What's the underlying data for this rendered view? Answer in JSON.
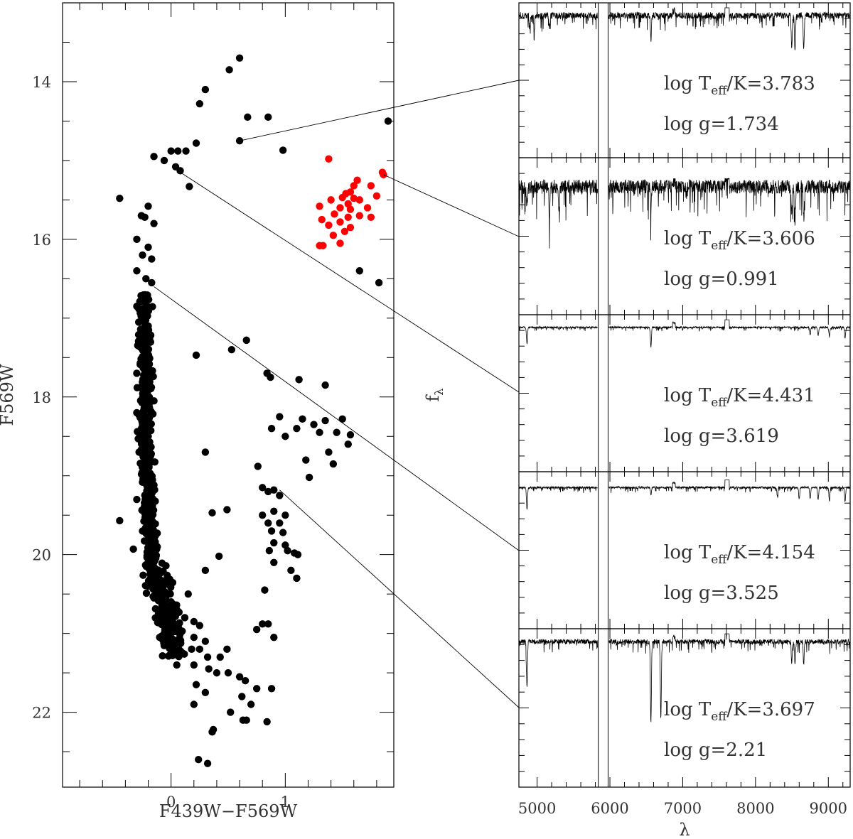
{
  "chart_data": [
    {
      "type": "scatter",
      "title": "",
      "xlabel": "F439W−F569W",
      "ylabel": "F569W",
      "xlim": [
        -0.95,
        1.95
      ],
      "ylim": [
        22.95,
        13.0
      ],
      "y_inverted": true,
      "xticks": [
        0,
        1
      ],
      "yticks": [
        14,
        16,
        18,
        20,
        22
      ],
      "colors": {
        "main": "#000000",
        "highlight": "#ff0000"
      },
      "series": [
        {
          "color": "#000000",
          "points": [
            [
              0.6,
              13.7
            ],
            [
              0.51,
              13.85
            ],
            [
              0.3,
              14.1
            ],
            [
              0.25,
              14.28
            ],
            [
              0.67,
              14.45
            ],
            [
              0.85,
              14.45
            ],
            [
              1.9,
              14.5
            ],
            [
              0.6,
              14.75
            ],
            [
              0.22,
              14.78
            ],
            [
              0.06,
              14.88
            ],
            [
              0.13,
              14.88
            ],
            [
              0.0,
              14.88
            ],
            [
              0.98,
              14.87
            ],
            [
              -0.15,
              14.95
            ],
            [
              -0.06,
              15.0
            ],
            [
              0.04,
              15.08
            ],
            [
              0.08,
              15.13
            ],
            [
              0.16,
              15.33
            ],
            [
              -0.45,
              15.48
            ],
            [
              -0.2,
              15.58
            ],
            [
              -0.23,
              15.72
            ],
            [
              -0.26,
              15.7
            ],
            [
              -0.15,
              15.8
            ],
            [
              -0.3,
              16.0
            ],
            [
              -0.2,
              16.1
            ],
            [
              -0.25,
              16.2
            ],
            [
              -0.17,
              16.25
            ],
            [
              -0.3,
              16.4
            ],
            [
              -0.22,
              16.5
            ],
            [
              -0.17,
              16.55
            ],
            [
              1.65,
              16.4
            ],
            [
              1.82,
              16.55
            ],
            [
              -0.3,
              16.85
            ],
            [
              -0.25,
              17.0
            ],
            [
              -0.2,
              17.1
            ],
            [
              -0.28,
              17.3
            ],
            [
              -0.22,
              17.5
            ],
            [
              -0.3,
              17.7
            ],
            [
              0.66,
              17.28
            ],
            [
              0.53,
              17.4
            ],
            [
              0.22,
              17.47
            ],
            [
              0.84,
              17.7
            ],
            [
              0.87,
              17.75
            ],
            [
              1.12,
              17.78
            ],
            [
              1.35,
              17.85
            ],
            [
              -0.25,
              17.9
            ],
            [
              -0.15,
              18.05
            ],
            [
              -0.3,
              18.2
            ],
            [
              -0.25,
              18.35
            ],
            [
              -0.2,
              18.5
            ],
            [
              0.95,
              18.25
            ],
            [
              1.15,
              18.28
            ],
            [
              1.35,
              18.3
            ],
            [
              1.5,
              18.28
            ],
            [
              1.25,
              18.35
            ],
            [
              1.1,
              18.4
            ],
            [
              0.88,
              18.4
            ],
            [
              1.45,
              18.45
            ],
            [
              1.57,
              18.48
            ],
            [
              1.0,
              18.5
            ],
            [
              1.3,
              18.45
            ],
            [
              1.55,
              18.6
            ],
            [
              -0.28,
              18.7
            ],
            [
              0.3,
              18.7
            ],
            [
              1.38,
              18.7
            ],
            [
              1.18,
              18.8
            ],
            [
              1.42,
              18.85
            ],
            [
              0.76,
              18.88
            ],
            [
              -0.22,
              19.0
            ],
            [
              1.21,
              19.02
            ],
            [
              0.8,
              19.15
            ],
            [
              0.85,
              19.2
            ],
            [
              0.9,
              19.18
            ],
            [
              0.95,
              19.25
            ],
            [
              -0.3,
              19.3
            ],
            [
              -0.2,
              19.45
            ],
            [
              0.49,
              19.43
            ],
            [
              0.36,
              19.47
            ],
            [
              0.8,
              19.5
            ],
            [
              0.9,
              19.45
            ],
            [
              1.0,
              19.5
            ],
            [
              0.85,
              19.6
            ],
            [
              0.95,
              19.6
            ],
            [
              -0.45,
              19.57
            ],
            [
              -0.25,
              19.7
            ],
            [
              0.88,
              19.7
            ],
            [
              0.98,
              19.72
            ],
            [
              0.9,
              19.85
            ],
            [
              1.0,
              19.88
            ],
            [
              -0.33,
              19.93
            ],
            [
              0.86,
              19.95
            ],
            [
              1.02,
              19.95
            ],
            [
              1.08,
              19.98
            ],
            [
              0.42,
              20.02
            ],
            [
              1.11,
              20.0
            ],
            [
              -0.2,
              20.1
            ],
            [
              0.9,
              20.1
            ],
            [
              0.3,
              20.2
            ],
            [
              1.05,
              20.2
            ],
            [
              1.1,
              20.3
            ],
            [
              -0.2,
              20.4
            ],
            [
              0.82,
              20.45
            ],
            [
              -0.15,
              20.55
            ],
            [
              0.15,
              20.5
            ],
            [
              0.0,
              20.6
            ],
            [
              0.05,
              20.7
            ],
            [
              0.12,
              20.8
            ],
            [
              0.2,
              20.85
            ],
            [
              0.02,
              20.95
            ],
            [
              0.25,
              20.9
            ],
            [
              0.8,
              20.88
            ],
            [
              0.85,
              20.88
            ],
            [
              0.75,
              20.95
            ],
            [
              -0.1,
              21.05
            ],
            [
              0.2,
              21.05
            ],
            [
              0.9,
              21.05
            ],
            [
              0.3,
              21.1
            ],
            [
              0.0,
              21.2
            ],
            [
              0.18,
              21.2
            ],
            [
              0.25,
              21.2
            ],
            [
              0.1,
              21.25
            ],
            [
              0.49,
              21.2
            ],
            [
              0.32,
              21.3
            ],
            [
              0.43,
              21.3
            ],
            [
              0.05,
              21.4
            ],
            [
              0.2,
              21.4
            ],
            [
              0.33,
              21.45
            ],
            [
              0.4,
              21.5
            ],
            [
              0.5,
              21.5
            ],
            [
              0.6,
              21.55
            ],
            [
              0.65,
              21.6
            ],
            [
              0.22,
              21.65
            ],
            [
              0.75,
              21.7
            ],
            [
              0.88,
              21.7
            ],
            [
              0.3,
              21.75
            ],
            [
              0.62,
              21.8
            ],
            [
              0.2,
              21.9
            ],
            [
              0.7,
              21.9
            ],
            [
              0.52,
              22.0
            ],
            [
              0.63,
              22.1
            ],
            [
              0.66,
              22.1
            ],
            [
              0.84,
              22.12
            ],
            [
              0.37,
              22.22
            ],
            [
              0.36,
              22.25
            ],
            [
              0.24,
              22.6
            ],
            [
              0.32,
              22.65
            ]
          ]
        },
        {
          "color": "#ff0000",
          "points": [
            [
              1.38,
              14.98
            ],
            [
              1.85,
              15.15
            ],
            [
              1.86,
              15.18
            ],
            [
              1.63,
              15.25
            ],
            [
              1.6,
              15.32
            ],
            [
              1.75,
              15.32
            ],
            [
              1.53,
              15.42
            ],
            [
              1.57,
              15.4
            ],
            [
              1.5,
              15.47
            ],
            [
              1.6,
              15.48
            ],
            [
              1.8,
              15.45
            ],
            [
              1.4,
              15.5
            ],
            [
              1.55,
              15.55
            ],
            [
              1.65,
              15.5
            ],
            [
              1.3,
              15.58
            ],
            [
              1.48,
              15.6
            ],
            [
              1.57,
              15.62
            ],
            [
              1.72,
              15.6
            ],
            [
              1.43,
              15.68
            ],
            [
              1.55,
              15.72
            ],
            [
              1.65,
              15.7
            ],
            [
              1.75,
              15.72
            ],
            [
              1.32,
              15.75
            ],
            [
              1.48,
              15.78
            ],
            [
              1.38,
              15.82
            ],
            [
              1.57,
              15.85
            ],
            [
              1.52,
              15.9
            ],
            [
              1.42,
              15.95
            ],
            [
              1.48,
              16.05
            ],
            [
              1.3,
              16.08
            ],
            [
              1.33,
              16.08
            ]
          ]
        }
      ]
    },
    {
      "type": "line",
      "title": "",
      "xlabel": "λ",
      "ylabel": "fλ",
      "ylabel_main": "f",
      "ylabel_sub": "λ",
      "xlim": [
        4750,
        9300
      ],
      "xticks": [
        5000,
        6000,
        7000,
        8000,
        9000
      ],
      "panels": [
        {
          "label_teff": "log T",
          "sub": "eff",
          "teff_rest": "/K=3.783",
          "logg": "log  g=1.734",
          "noise": 0.7,
          "deep_lines": [
            [
              4960,
              1.5
            ],
            [
              4900,
              1.2
            ],
            [
              6563,
              2.6
            ],
            [
              8498,
              3.5
            ],
            [
              8542,
              3.8
            ],
            [
              8662,
              3.6
            ],
            [
              5895,
              1.0
            ],
            [
              5170,
              1.3
            ]
          ],
          "level": 0.92,
          "seed": 3
        },
        {
          "label_teff": "log T",
          "sub": "eff",
          "teff_rest": "/K=3.606",
          "logg": "log  g=0.991",
          "noise": 1.5,
          "deep_lines": [
            [
              5170,
              3.2
            ],
            [
              5300,
              2.5
            ],
            [
              4860,
              2.0
            ],
            [
              6563,
              2.4
            ],
            [
              8498,
              3.2
            ],
            [
              8542,
              3.6
            ],
            [
              8662,
              3.4
            ],
            [
              7050,
              1.0
            ]
          ],
          "level": 0.82,
          "seed": 7
        },
        {
          "label_teff": "log T",
          "sub": "eff",
          "teff_rest": "/K=4.431",
          "logg": "log  g=3.619",
          "noise": 0.18,
          "deep_lines": [
            [
              4861,
              1.8
            ],
            [
              6563,
              2.1
            ],
            [
              8750,
              0.8
            ],
            [
              8860,
              0.9
            ],
            [
              9015,
              1.0
            ],
            [
              9230,
              1.1
            ]
          ],
          "level": 0.92,
          "seed": 11
        },
        {
          "label_teff": "log T",
          "sub": "eff",
          "teff_rest": "/K=4.154",
          "logg": "log  g=3.525",
          "noise": 0.22,
          "deep_lines": [
            [
              4861,
              2.4
            ],
            [
              6563,
              0.8
            ],
            [
              8600,
              1.2
            ],
            [
              8750,
              1.2
            ],
            [
              8860,
              1.3
            ],
            [
              9015,
              1.4
            ],
            [
              9230,
              1.5
            ],
            [
              8300,
              0.9
            ]
          ],
          "level": 0.9,
          "seed": 19
        },
        {
          "label_teff": "log T",
          "sub": "eff",
          "teff_rest": "/K=3.697",
          "logg": "log  g=2.21",
          "noise": 0.5,
          "deep_lines": [
            [
              4861,
              5.0
            ],
            [
              6563,
              8.5
            ],
            [
              6700,
              8.0
            ],
            [
              8498,
              2.2
            ],
            [
              8542,
              2.4
            ],
            [
              8662,
              2.3
            ]
          ],
          "level": 0.92,
          "seed": 23
        }
      ]
    }
  ],
  "connectors": [
    {
      "star": [
        0.6,
        14.75
      ],
      "panel": 0
    },
    {
      "star": [
        1.86,
        15.18
      ],
      "panel": 1
    },
    {
      "star": [
        0.06,
        15.13
      ],
      "panel": 2
    },
    {
      "star": [
        -0.15,
        16.6
      ],
      "panel": 3
    },
    {
      "star": [
        0.95,
        19.18
      ],
      "panel": 4
    }
  ]
}
